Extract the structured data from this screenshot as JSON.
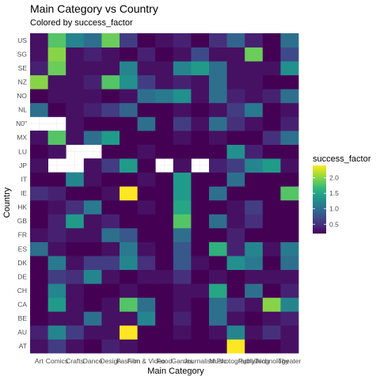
{
  "chart_data": {
    "type": "heatmap",
    "title": "Main Category vs Country",
    "subtitle": "Colored by success_factor",
    "xlabel": "Main Category",
    "ylabel": "Country",
    "legend_title": "success_factor",
    "legend_ticks": [
      "0.5",
      "1.0",
      "1.5",
      "2.0"
    ],
    "legend_placement": "right",
    "color_scale": "viridis",
    "value_range": [
      0.2,
      2.4
    ],
    "x": [
      "Art",
      "Comics",
      "Crafts",
      "Dance",
      "Design",
      "Fashion",
      "Film & Video",
      "Food",
      "Games",
      "Journalism",
      "Music",
      "Photography",
      "Publishing",
      "Technology",
      "Theater"
    ],
    "y": [
      "AT",
      "AU",
      "BE",
      "CA",
      "CH",
      "DE",
      "DK",
      "ES",
      "FR",
      "GB",
      "HK",
      "IE",
      "IT",
      "JP",
      "LU",
      "MX",
      "N0\"",
      "NL",
      "NO",
      "NZ",
      "SE",
      "SG",
      "US"
    ],
    "values": [
      [
        0.3,
        0.6,
        0.3,
        0.2,
        0.4,
        0.3,
        0.2,
        0.2,
        0.2,
        0.2,
        0.2,
        2.4,
        0.2,
        0.2,
        0.3
      ],
      [
        0.4,
        1.2,
        0.6,
        0.3,
        0.3,
        2.4,
        0.2,
        0.2,
        0.3,
        0.2,
        0.3,
        1.2,
        0.3,
        0.5,
        0.3
      ],
      [
        0.2,
        0.3,
        0.3,
        1.0,
        0.3,
        0.3,
        1.2,
        0.2,
        0.4,
        0.2,
        1.0,
        0.3,
        0.2,
        0.3,
        0.4
      ],
      [
        0.2,
        1.4,
        0.3,
        0.2,
        0.3,
        1.8,
        1.0,
        0.2,
        0.3,
        0.2,
        1.0,
        0.5,
        0.3,
        2.0,
        1.2
      ],
      [
        0.2,
        1.2,
        0.3,
        0.2,
        0.2,
        0.3,
        0.2,
        0.2,
        0.3,
        0.3,
        1.5,
        0.2,
        1.0,
        0.2,
        0.4
      ],
      [
        0.2,
        0.6,
        0.5,
        1.2,
        0.3,
        0.2,
        0.3,
        0.3,
        0.5,
        0.2,
        0.3,
        0.2,
        0.3,
        0.3,
        0.3
      ],
      [
        0.2,
        1.1,
        0.3,
        0.6,
        0.6,
        1.2,
        0.5,
        0.2,
        0.8,
        0.3,
        0.2,
        1.3,
        1.1,
        0.2,
        1.0
      ],
      [
        1.0,
        0.3,
        0.2,
        0.2,
        0.3,
        1.1,
        0.3,
        0.2,
        0.8,
        0.2,
        1.6,
        0.4,
        1.2,
        0.3,
        1.1
      ],
      [
        0.3,
        0.4,
        0.3,
        0.3,
        1.0,
        0.8,
        0.2,
        0.2,
        1.0,
        0.2,
        0.2,
        0.4,
        0.2,
        0.2,
        0.2
      ],
      [
        0.2,
        0.4,
        1.4,
        0.3,
        0.4,
        0.2,
        0.2,
        0.2,
        1.8,
        0.2,
        1.0,
        0.3,
        0.5,
        0.2,
        0.2
      ],
      [
        0.2,
        0.3,
        0.5,
        1.1,
        0.2,
        0.2,
        0.3,
        0.2,
        1.5,
        0.2,
        0.2,
        0.3,
        0.6,
        0.2,
        0.2
      ],
      [
        0.5,
        0.4,
        0.2,
        0.2,
        0.3,
        2.4,
        0.2,
        0.2,
        1.4,
        0.2,
        1.0,
        0.2,
        0.2,
        0.2,
        1.8
      ],
      [
        0.2,
        0.2,
        1.2,
        0.3,
        0.2,
        0.2,
        0.3,
        0.2,
        1.4,
        0.2,
        0.2,
        1.0,
        0.2,
        0.2,
        0.2
      ],
      [
        0.3,
        null,
        null,
        0.3,
        0.6,
        1.4,
        0.2,
        null,
        0.3,
        null,
        0.4,
        0.6,
        1.2,
        1.4,
        0.3
      ],
      [
        0.2,
        0.3,
        null,
        null,
        0.2,
        0.2,
        0.3,
        0.2,
        0.2,
        0.2,
        0.2,
        1.3,
        0.4,
        0.2,
        0.2
      ],
      [
        0.3,
        1.8,
        0.3,
        1.0,
        1.4,
        0.2,
        0.2,
        0.2,
        0.3,
        0.2,
        0.3,
        0.2,
        0.2,
        0.5,
        1.0
      ],
      [
        null,
        null,
        0.3,
        0.2,
        0.2,
        0.2,
        1.0,
        0.2,
        0.6,
        0.3,
        1.0,
        0.5,
        0.3,
        0.2,
        0.4
      ],
      [
        1.0,
        0.2,
        0.3,
        0.4,
        0.6,
        0.9,
        0.2,
        0.2,
        0.3,
        0.2,
        0.3,
        0.6,
        1.1,
        0.2,
        0.3
      ],
      [
        0.2,
        0.3,
        0.3,
        0.3,
        0.2,
        0.3,
        1.0,
        1.1,
        1.3,
        0.3,
        1.0,
        0.4,
        0.3,
        0.4,
        1.0
      ],
      [
        2.0,
        0.3,
        0.3,
        0.4,
        1.8,
        1.3,
        0.6,
        0.3,
        0.4,
        0.3,
        1.0,
        0.3,
        0.3,
        0.2,
        0.2
      ],
      [
        0.4,
        1.9,
        0.3,
        0.3,
        0.3,
        1.2,
        0.3,
        0.3,
        1.2,
        1.4,
        1.0,
        0.3,
        0.3,
        0.3,
        1.3
      ],
      [
        0.3,
        2.0,
        0.3,
        0.4,
        0.3,
        0.2,
        0.4,
        0.2,
        0.3,
        0.7,
        0.3,
        0.3,
        1.9,
        0.2,
        0.7
      ],
      [
        0.3,
        1.8,
        1.2,
        1.0,
        1.9,
        0.6,
        0.2,
        0.3,
        0.4,
        0.2,
        0.5,
        0.9,
        0.4,
        0.2,
        1.0
      ]
    ]
  }
}
